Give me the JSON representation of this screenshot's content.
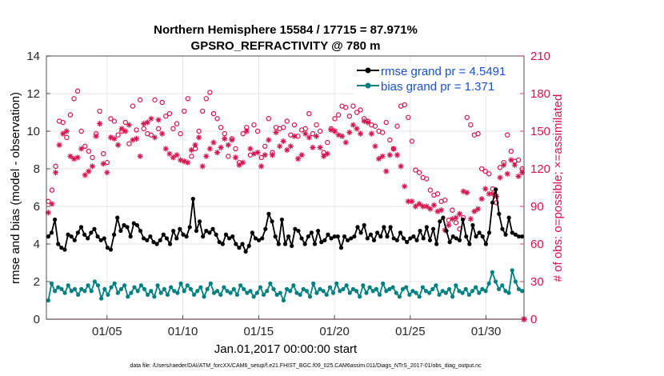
{
  "chart_data": {
    "type": "line",
    "title": "Northern Hemisphere 15584 / 17715 = 87.971%",
    "subtitle": "GPSRO_REFRACTIVITY @ 780 m",
    "xlabel": "Jan.01,2017 00:00:00 start",
    "ylabel_left": "rmse and bias (model - observation)",
    "ylabel_right": "# of obs: o=possible; ×=assimilated",
    "footnote": "data file: /Users/raeder/DAI/ATM_forcXX/CAM6_setup/f.e21.FHIST_BGC.f09_025.CAM6assim.011/Diags_NTrS_2017-01/obs_diag_output.nc",
    "x_ticks": [
      "01/05",
      "01/10",
      "01/15",
      "01/20",
      "01/25",
      "01/30"
    ],
    "y_left_ticks": [
      "0",
      "2",
      "4",
      "6",
      "8",
      "10",
      "12",
      "14"
    ],
    "y_right_ticks": [
      "0",
      "30",
      "60",
      "90",
      "120",
      "150",
      "180",
      "210"
    ],
    "xlim": [
      1,
      32.5
    ],
    "ylim_left": [
      0,
      14
    ],
    "ylim_right": [
      0,
      210
    ],
    "grid": true,
    "legend_position": "top-right",
    "colors": {
      "rmse": "#000000",
      "bias": "#008080",
      "obs": "#d6134f",
      "legend_text": "#1a4fd6"
    },
    "series": [
      {
        "name": "rmse grand pr = 4.5491",
        "axis": "left",
        "values": [
          4.4,
          4.6,
          5.3,
          4.0,
          3.8,
          3.7,
          4.5,
          4.4,
          4.2,
          4.6,
          4.9,
          4.5,
          4.3,
          4.6,
          4.8,
          4.4,
          4.2,
          4.3,
          3.8,
          3.7,
          4.5,
          5.4,
          4.7,
          5.0,
          4.9,
          4.4,
          5.1,
          5.0,
          4.7,
          4.3,
          4.2,
          4.4,
          4.1,
          4.0,
          4.2,
          4.5,
          4.3,
          4.0,
          4.7,
          4.3,
          4.8,
          4.5,
          4.4,
          4.9,
          6.4,
          4.7,
          5.2,
          4.4,
          4.7,
          4.6,
          4.8,
          4.5,
          4.1,
          4.0,
          4.5,
          4.3,
          4.4,
          4.0,
          3.8,
          4.0,
          3.6,
          3.9,
          4.6,
          4.3,
          4.2,
          4.3,
          4.8,
          5.6,
          5.2,
          4.4,
          4.0,
          5.3,
          4.0,
          4.4,
          3.9,
          4.8,
          4.7,
          4.3,
          4.0,
          4.4,
          4.6,
          4.0,
          4.7,
          4.1,
          4.2,
          4.5,
          4.3,
          4.4,
          4.4,
          3.8,
          4.4,
          4.2,
          4.3,
          4.4,
          4.9,
          4.6,
          5.0,
          4.3,
          4.5,
          4.2,
          4.6,
          4.4,
          4.9,
          4.4,
          4.9,
          4.3,
          4.2,
          4.6,
          4.3,
          4.1,
          4.3,
          4.4,
          4.2,
          4.7,
          4.3,
          4.9,
          4.2,
          4.8,
          4.0,
          5.2,
          5.4,
          4.7,
          4.1,
          4.4,
          4.3,
          4.2,
          5.3,
          4.4,
          4.0,
          5.0,
          4.4,
          4.6,
          4.4,
          4.0,
          4.6,
          6.2,
          6.9,
          5.6,
          4.8,
          4.5,
          5.4,
          4.6,
          4.5,
          4.4,
          4.4
        ]
      },
      {
        "name": "bias grand pr = 1.371",
        "axis": "left",
        "values": [
          1.0,
          1.9,
          1.5,
          1.7,
          1.6,
          1.4,
          1.8,
          1.5,
          1.6,
          1.3,
          1.6,
          1.5,
          1.8,
          1.5,
          2.0,
          1.8,
          1.1,
          1.6,
          1.3,
          1.7,
          1.9,
          1.4,
          1.6,
          1.8,
          1.2,
          1.4,
          1.7,
          1.5,
          1.8,
          1.6,
          1.3,
          1.5,
          1.2,
          1.8,
          1.4,
          1.6,
          1.3,
          1.7,
          1.5,
          1.4,
          1.9,
          1.5,
          1.8,
          1.6,
          1.3,
          1.5,
          1.7,
          1.2,
          1.6,
          1.9,
          1.4,
          1.5,
          1.3,
          1.7,
          1.5,
          1.4,
          1.6,
          1.3,
          1.8,
          1.6,
          1.4,
          1.5,
          1.2,
          1.4,
          1.7,
          1.3,
          1.5,
          1.9,
          1.6,
          1.3,
          1.4,
          1.0,
          1.6,
          1.5,
          1.8,
          1.4,
          1.3,
          1.6,
          1.5,
          1.2,
          1.9,
          1.4,
          1.6,
          1.5,
          1.3,
          1.7,
          1.4,
          1.9,
          1.5,
          1.6,
          1.8,
          1.4,
          1.6,
          1.5,
          1.2,
          1.8,
          1.4,
          1.7,
          1.5,
          1.6,
          1.3,
          1.9,
          1.5,
          1.6,
          1.7,
          1.4,
          1.2,
          1.6,
          1.7,
          1.3,
          1.5,
          1.4,
          1.2,
          1.7,
          1.5,
          1.4,
          1.6,
          1.8,
          1.3,
          1.5,
          1.4,
          1.6,
          1.2,
          1.8,
          1.5,
          1.4,
          1.6,
          1.3,
          1.5,
          1.7,
          1.4,
          1.6,
          1.5,
          1.9,
          2.5,
          2.0,
          1.6,
          1.8,
          1.5,
          1.4,
          2.6,
          2.0,
          1.6,
          1.5
        ]
      },
      {
        "name": "possible",
        "axis": "right",
        "marker": "circle",
        "values": [
          94,
          103,
          122,
          158,
          157,
          145,
          163,
          176,
          182,
          150,
          138,
          134,
          129,
          148,
          166,
          132,
          125,
          160,
          158,
          147,
          150,
          157,
          140,
          170,
          151,
          175,
          152,
          148,
          147,
          175,
          152,
          173,
          162,
          164,
          152,
          156,
          148,
          166,
          176,
          130,
          136,
          150,
          166,
          176,
          181,
          164,
          160,
          153,
          148,
          130,
          144,
          136,
          125,
          148,
          153,
          131,
          155,
          150,
          129,
          138,
          160,
          133,
          153,
          152,
          153,
          158,
          147,
          155,
          146,
          151,
          152,
          164,
          148,
          155,
          150,
          133,
          141,
          152,
          160,
          163,
          170,
          169,
          162,
          170,
          165,
          167,
          160,
          158,
          155,
          154,
          150,
          149,
          157,
          143,
          136,
          154,
          170,
          171,
          161,
          142,
          119,
          117,
          113,
          112,
          103,
          99,
          100,
          94,
          95,
          79,
          87,
          77,
          72,
          81,
          161,
          155,
          147,
          148,
          120,
          118,
          116,
          104,
          93,
          121,
          125,
          147,
          134,
          126,
          127,
          120
        ]
      },
      {
        "name": "assimilated",
        "axis": "right",
        "marker": "star",
        "values": [
          85,
          92,
          117,
          139,
          148,
          150,
          130,
          128,
          129,
          136,
          115,
          118,
          122,
          146,
          156,
          124,
          117,
          145,
          144,
          139,
          152,
          150,
          155,
          143,
          144,
          130,
          156,
          157,
          160,
          145,
          159,
          148,
          136,
          132,
          129,
          131,
          127,
          126,
          125,
          135,
          139,
          145,
          122,
          130,
          136,
          141,
          133,
          137,
          144,
          139,
          143,
          129,
          123,
          125,
          150,
          136,
          132,
          133,
          122,
          131,
          143,
          131,
          149,
          138,
          142,
          135,
          138,
          146,
          128,
          131,
          148,
          145,
          137,
          146,
          137,
          130,
          132,
          151,
          150,
          147,
          146,
          141,
          149,
          155,
          152,
          148,
          158,
          157,
          148,
          138,
          128,
          130,
          118,
          131,
          136,
          131,
          122,
          106,
          94,
          94,
          90,
          92,
          90,
          90,
          88,
          91,
          86,
          87,
          71,
          75,
          80,
          81,
          84,
          102,
          101,
          80,
          86,
          88,
          96,
          104,
          100,
          100,
          98,
          113,
          123,
          116,
          127,
          123,
          114,
          117
        ]
      }
    ]
  }
}
